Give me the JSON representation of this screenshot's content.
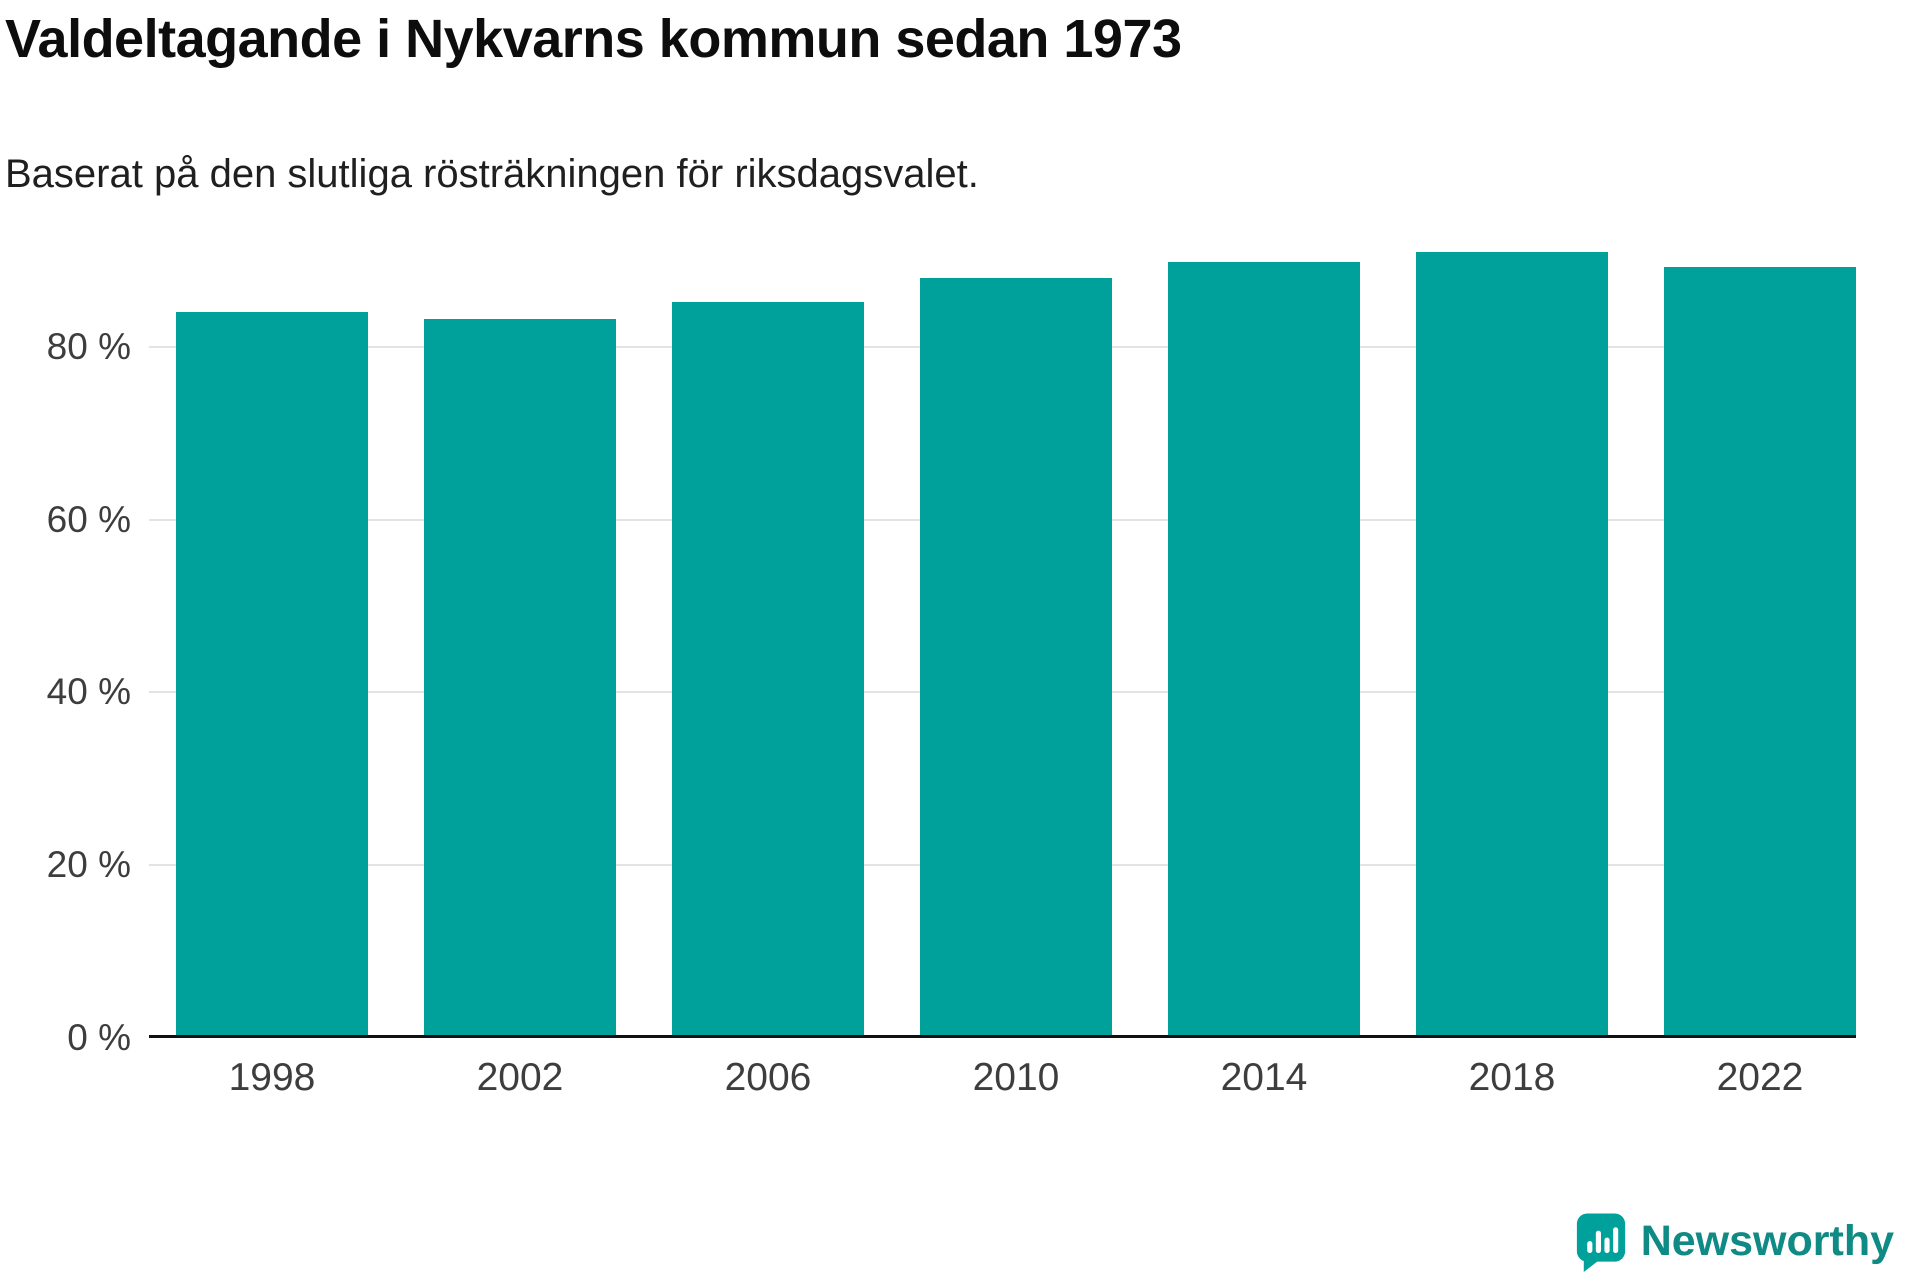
{
  "header": {
    "title": "Valdeltagande i Nykvarns kommun sedan 1973",
    "subtitle": "Baserat på den slutliga rösträkningen för riksdagsvalet."
  },
  "chart_data": {
    "type": "bar",
    "title": "Valdeltagande i Nykvarns kommun sedan 1973",
    "subtitle": "Baserat på den slutliga rösträkningen för riksdagsvalet.",
    "categories": [
      "1998",
      "2002",
      "2006",
      "2010",
      "2014",
      "2018",
      "2022"
    ],
    "values": [
      84.0,
      83.2,
      85.2,
      88.0,
      89.8,
      91.0,
      89.2
    ],
    "unit": "%",
    "xlabel": "",
    "ylabel": "",
    "ylim": [
      0,
      100
    ],
    "yticks": [
      0,
      20,
      40,
      60,
      80
    ],
    "ytick_labels": [
      "0 %",
      "20 %",
      "40 %",
      "60 %",
      "80 %"
    ],
    "grid": true,
    "legend": "none"
  },
  "colors": {
    "bar": "#00a09b",
    "grid": "#e3e3e3",
    "axis": "#111111",
    "tick": "#3d3d3d",
    "brand": "#0f8a84"
  },
  "footer": {
    "brand": "Newsworthy"
  }
}
